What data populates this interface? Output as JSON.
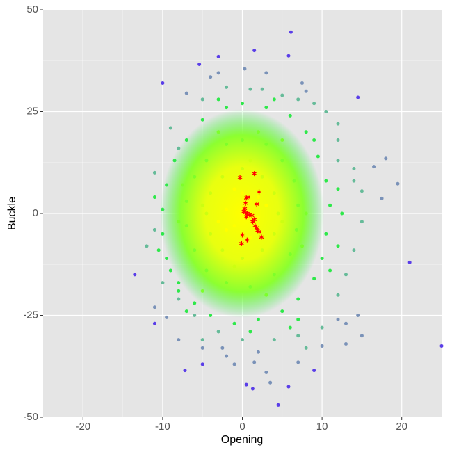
{
  "chart_data": {
    "type": "scatter",
    "x_label": "Opening",
    "y_label": "Buckle",
    "xlim": [
      -25,
      25
    ],
    "ylim": [
      -50,
      50
    ],
    "xticks": [
      -20,
      -10,
      0,
      10,
      20
    ],
    "yticks": [
      -50,
      -25,
      0,
      25,
      50
    ],
    "grid": true,
    "series": [
      {
        "color": "#5a3ee8",
        "marker": "circle",
        "x": [
          6.1,
          4.5,
          -10,
          1.5,
          -3,
          5.8,
          -5.4,
          -7.2,
          5.8,
          0.5,
          -5,
          1.3,
          21,
          -11,
          -13.5,
          9,
          25,
          14.5
        ],
        "values": [
          44.5,
          -47,
          32,
          40,
          38.5,
          38.7,
          36.6,
          -38.5,
          -42.5,
          -42,
          -37,
          -43,
          -12,
          -27,
          -15,
          -38.5,
          -32.5,
          28.5
        ]
      },
      {
        "color": "#7a92b8",
        "marker": "circle",
        "x": [
          -7,
          -4,
          -3,
          0.3,
          3,
          7.5,
          8,
          18,
          19.5,
          17.5,
          16.5,
          13,
          13,
          15,
          12,
          -8,
          -5,
          -2,
          1.5,
          3,
          -2.5,
          -1,
          10,
          14.5,
          -9.5,
          3.5,
          2,
          7,
          -11
        ],
        "values": [
          29.5,
          33.5,
          34.5,
          35.5,
          34.5,
          32,
          30,
          13.5,
          7.3,
          3.7,
          11.5,
          -27,
          -32,
          -30,
          -26,
          -31,
          -33,
          -35,
          -36.5,
          -39,
          -33,
          -37,
          -32.5,
          -25,
          -25.5,
          -41.5,
          -34,
          -36.5,
          -23
        ]
      },
      {
        "color": "#66bb99",
        "marker": "circle",
        "x": [
          -2,
          1,
          2.5,
          5,
          7,
          9,
          -5,
          10.5,
          12,
          -9,
          -11,
          14,
          15,
          12,
          14,
          13,
          12,
          -11,
          -12,
          -8,
          -6,
          -3,
          0,
          4,
          7,
          10,
          -5,
          8,
          12,
          -8,
          14,
          15,
          -10
        ],
        "values": [
          31,
          30.5,
          30.5,
          29,
          28,
          27,
          28,
          25,
          22,
          21,
          10,
          8,
          5.5,
          13,
          -9,
          -15,
          -20,
          -4,
          -8,
          -21,
          -25,
          -29,
          -31,
          -31,
          -30,
          -28,
          -31,
          -33,
          18,
          16,
          11,
          -2,
          -17
        ]
      },
      {
        "color": "#2ee84a",
        "marker": "circle",
        "x": [
          0,
          3,
          6,
          8,
          9.5,
          10.5,
          11,
          10.5,
          10,
          9,
          7,
          5,
          2,
          -1,
          -4,
          -6,
          -8,
          -9.5,
          -10,
          -10,
          -9.5,
          -8.5,
          -7,
          -5,
          -2,
          11,
          12,
          12.5,
          12,
          -11,
          -10.5,
          -9,
          4,
          -3,
          7,
          -7,
          9,
          -8,
          1,
          6
        ],
        "values": [
          27,
          26,
          24,
          20,
          14,
          8,
          2,
          -5,
          -11,
          -16,
          -21,
          -24,
          -26,
          -27,
          -25,
          -22,
          -17,
          -11,
          -5,
          1,
          7,
          13,
          18,
          23,
          26,
          -14,
          -8,
          0,
          6,
          4,
          -9,
          -14,
          28,
          28,
          -26,
          -24,
          18,
          -19,
          -29,
          -28
        ]
      },
      {
        "color": "#7dff2a",
        "marker": "circle",
        "x": [
          0,
          3,
          5,
          6.5,
          7,
          6.8,
          6,
          4,
          1,
          -2,
          -4.5,
          -6,
          -7,
          -7,
          -6,
          -4.5,
          -2,
          8,
          -8,
          7.5,
          -7.5,
          5,
          -5,
          2,
          -3,
          3
        ],
        "values": [
          18,
          17,
          13,
          8,
          2,
          -4,
          -10,
          -15,
          -18,
          -17,
          -14,
          -9,
          -3,
          3,
          9,
          13,
          17,
          0,
          -2,
          -8,
          7,
          18,
          -19,
          20,
          20,
          -20
        ]
      },
      {
        "color": "#ccff11",
        "marker": "circle",
        "x": [
          0,
          2.5,
          4,
          4.5,
          4,
          2.5,
          0,
          -2.5,
          -4,
          -4.5,
          -4,
          -2.5,
          5,
          -5,
          1,
          -1
        ],
        "values": [
          11,
          9,
          5,
          0,
          -5,
          -9,
          -11,
          -9,
          -5,
          0,
          5,
          9,
          -2,
          2,
          13,
          -13
        ]
      },
      {
        "color": "#ffff00",
        "marker": "circle",
        "x": [
          0,
          1,
          -1,
          2,
          -2,
          1,
          -1,
          3,
          -3,
          0,
          0,
          2,
          -2
        ],
        "values": [
          0,
          3,
          -3,
          -1,
          1,
          -6,
          6,
          2,
          -2,
          5,
          -5,
          4,
          -4
        ]
      },
      {
        "color": "#ff0000",
        "marker": "asterisk",
        "x": [
          -0.3,
          1.5,
          2.1,
          1.8,
          0.7,
          0.5,
          0.4,
          0.3,
          0.2,
          0.6,
          1.2,
          0.5,
          1.5,
          1.3,
          1.6,
          1.8,
          1.9,
          2.1,
          2.4,
          0,
          0.6,
          -0.1,
          0.9,
          0.4
        ],
        "values": [
          8.8,
          9.8,
          5.3,
          2.3,
          4,
          3.8,
          2.5,
          1.2,
          0.5,
          0,
          -0.5,
          -0.8,
          -1.5,
          -2,
          -3,
          -3.5,
          -4.2,
          -4.5,
          -5.8,
          -5.3,
          -6.5,
          -7.4,
          -0.3,
          0.2
        ]
      }
    ]
  }
}
